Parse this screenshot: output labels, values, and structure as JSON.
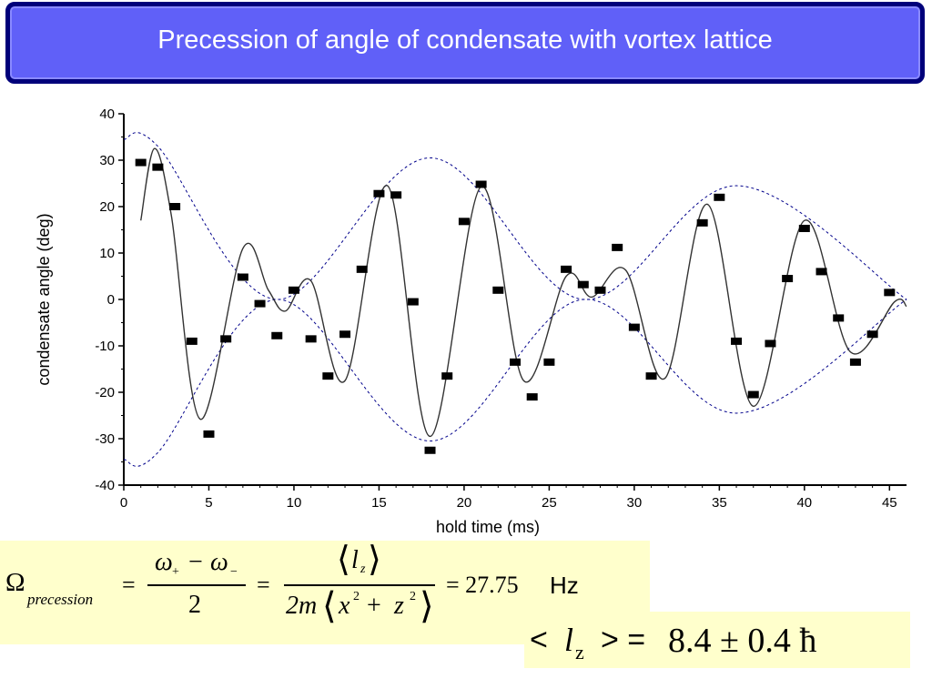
{
  "slide": {
    "title": "Precession of angle of condensate with vortex lattice"
  },
  "formula": {
    "omega": "Ω",
    "omega_subscript": "precession",
    "equals": "=",
    "frac1_numerator_a": "ω",
    "frac1_numerator_a_sub": "+",
    "frac1_minus": "−",
    "frac1_numerator_b": "ω",
    "frac1_numerator_b_sub": "−",
    "frac1_denominator": "2",
    "frac2_numerator_l": "l",
    "frac2_numerator_sub": "z",
    "frac2_denominator_2m": "2m",
    "frac2_denominator_x": "x",
    "frac2_denominator_plus": "+",
    "frac2_denominator_z": "z",
    "sq": "2",
    "result_value": "= 27.75",
    "result_unit": "Hz"
  },
  "lz_result": {
    "open": "<",
    "l": "l",
    "sub": "z",
    "close": "> =",
    "value": "8.4 ± 0.4 ħ"
  },
  "colors": {
    "title_bg": "#6060f8",
    "title_border": "#00007a",
    "formula_bg": "#ffffcc",
    "envelope": "#00008b",
    "fit_curve": "#333333",
    "points": "#000000"
  },
  "chart_data": {
    "type": "scatter",
    "xlabel": "hold time (ms)",
    "ylabel": "condensate angle (deg)",
    "xlim": [
      0,
      46
    ],
    "ylim": [
      -40,
      40
    ],
    "x_ticks": [
      0,
      5,
      10,
      15,
      20,
      25,
      30,
      35,
      40,
      45
    ],
    "y_ticks": [
      40,
      30,
      20,
      10,
      0,
      -10,
      -20,
      -30,
      -40
    ],
    "grid": false,
    "series": [
      {
        "style": "points",
        "x": [
          1,
          2,
          3,
          4,
          5,
          6,
          7,
          8,
          9,
          10,
          11,
          12,
          13,
          14,
          15,
          16,
          17,
          18,
          19,
          20,
          21,
          22,
          23,
          24,
          25,
          26,
          27,
          28,
          29,
          30,
          31,
          34,
          35,
          36,
          37,
          38,
          39,
          40,
          41,
          42,
          43,
          44,
          45
        ],
        "y": [
          29.5,
          28.5,
          20,
          -9,
          -29,
          -8.5,
          4.8,
          -0.9,
          -7.8,
          2,
          -8.5,
          -16.5,
          -7.5,
          6.5,
          22.8,
          22.5,
          -0.5,
          -32.5,
          -16.5,
          16.8,
          24.8,
          2,
          -13.5,
          -21,
          -13.5,
          6.5,
          3.2,
          2,
          11.2,
          -6,
          -16.5,
          16.5,
          22,
          -9,
          -20.5,
          -9.5,
          4.5,
          15.3,
          6,
          -4,
          -13.5,
          -7.5,
          1.5
        ]
      },
      {
        "style": "fit-curve",
        "model": "A(t) * cos(2*pi*f*(t - t0))",
        "amplitude_envelope": [
          [
            1,
            17
          ],
          [
            1.8,
            32.5
          ],
          [
            2.8,
            18
          ],
          [
            4.5,
            -25.8
          ],
          [
            7,
            11
          ],
          [
            8.5,
            2
          ],
          [
            9.5,
            -2.5
          ],
          [
            11,
            4
          ],
          [
            13,
            -17.5
          ],
          [
            15.5,
            24.5
          ],
          [
            18,
            -29.5
          ],
          [
            21,
            24.3
          ],
          [
            23.5,
            -17.5
          ],
          [
            26,
            5
          ],
          [
            27.5,
            0.5
          ],
          [
            29.5,
            6.3
          ],
          [
            31.8,
            -17
          ],
          [
            34.3,
            20.5
          ],
          [
            37,
            -23
          ],
          [
            40,
            17
          ],
          [
            42.7,
            -11.3
          ],
          [
            45.3,
            -0.5
          ],
          [
            46,
            -1.5
          ]
        ]
      },
      {
        "style": "envelope-upper",
        "x": [
          0,
          2,
          9,
          18,
          27,
          36,
          46
        ],
        "y": [
          34.5,
          33,
          0,
          30.5,
          0,
          24.5,
          0
        ]
      },
      {
        "style": "envelope-lower",
        "x": [
          0,
          2,
          9,
          18,
          27,
          36,
          46
        ],
        "y": [
          -34.5,
          -33,
          0,
          -30.5,
          0,
          -24.5,
          0
        ]
      }
    ]
  }
}
